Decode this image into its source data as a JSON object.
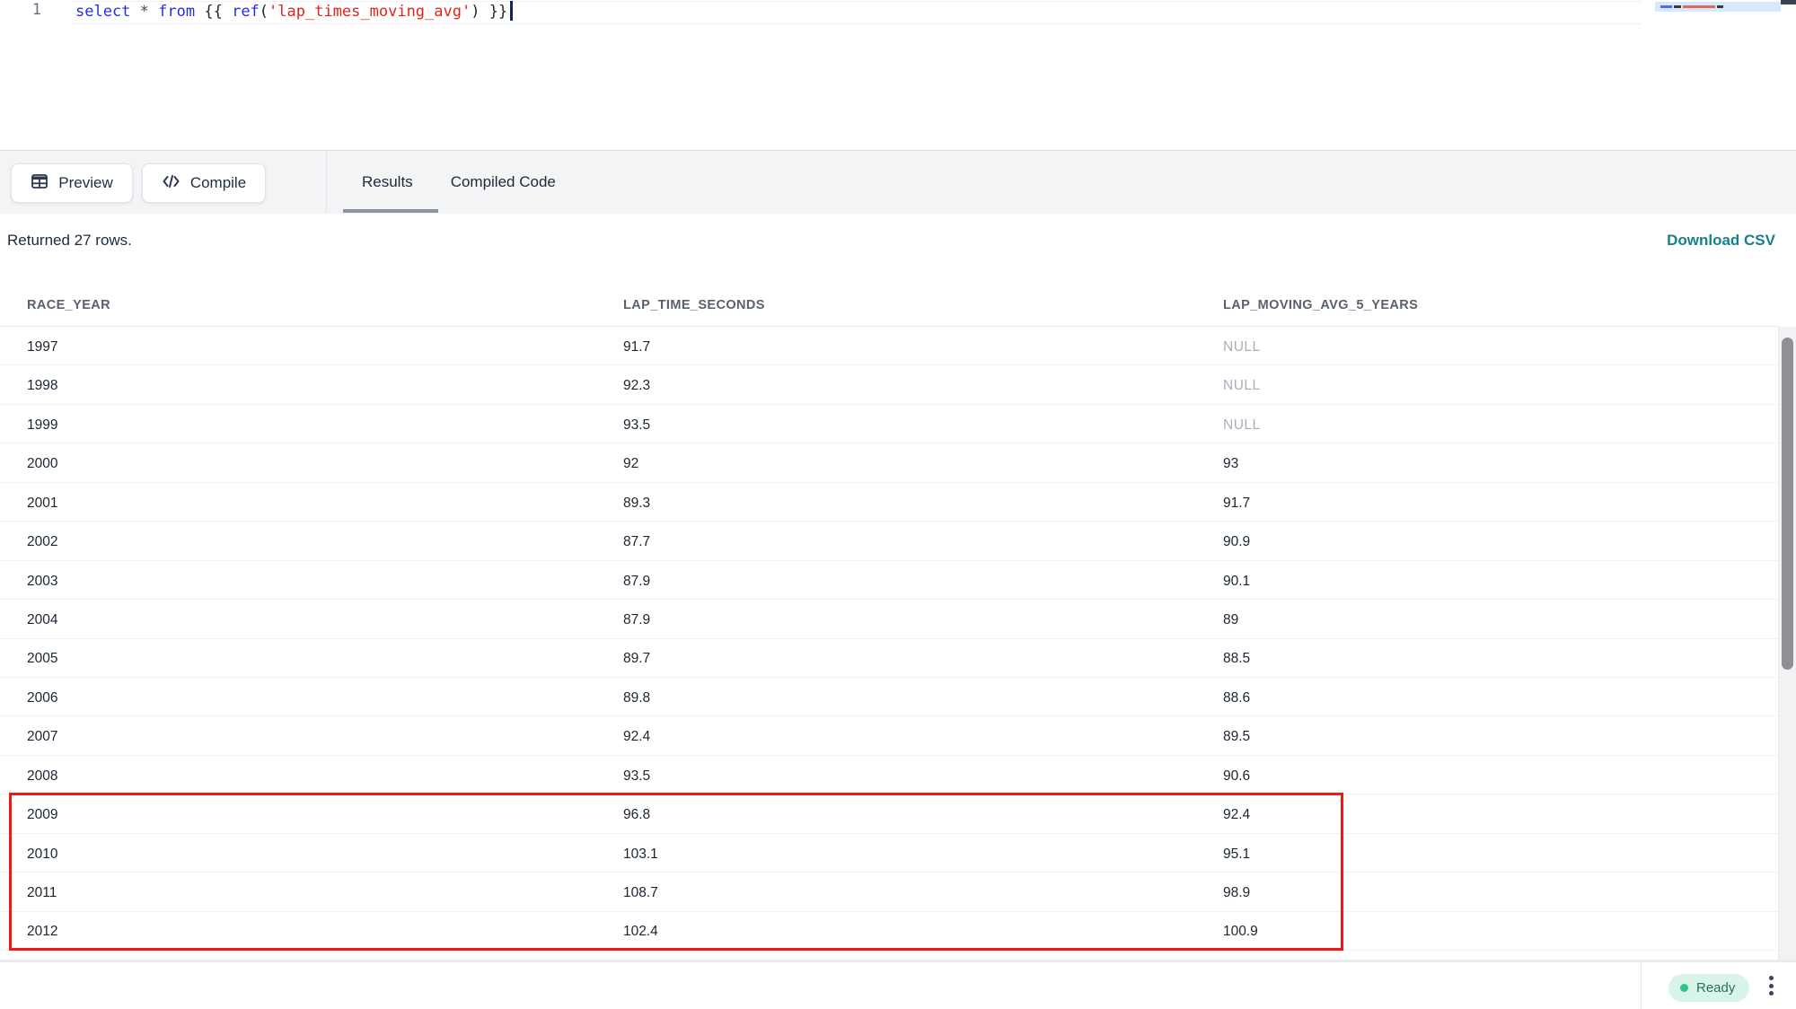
{
  "editor": {
    "line_number": "1",
    "tokens": [
      {
        "t": "select",
        "c": "kw"
      },
      {
        "t": " ",
        "c": "pl"
      },
      {
        "t": "*",
        "c": "op"
      },
      {
        "t": " ",
        "c": "pl"
      },
      {
        "t": "from",
        "c": "kw"
      },
      {
        "t": " {{ ",
        "c": "pl"
      },
      {
        "t": "ref",
        "c": "kw"
      },
      {
        "t": "(",
        "c": "pl"
      },
      {
        "t": "'lap_times_moving_avg'",
        "c": "str"
      },
      {
        "t": ")",
        "c": "pl"
      },
      {
        "t": " }}",
        "c": "pl"
      }
    ]
  },
  "toolbar": {
    "preview_label": "Preview",
    "compile_label": "Compile",
    "tabs": [
      {
        "label": "Results",
        "active": true
      },
      {
        "label": "Compiled Code",
        "active": false
      }
    ]
  },
  "results": {
    "summary": "Returned 27 rows.",
    "download_csv_label": "Download CSV",
    "table": {
      "columns": [
        "RACE_YEAR",
        "LAP_TIME_SECONDS",
        "LAP_MOVING_AVG_5_YEARS"
      ],
      "rows": [
        [
          "1997",
          "91.7",
          "NULL"
        ],
        [
          "1998",
          "92.3",
          "NULL"
        ],
        [
          "1999",
          "93.5",
          "NULL"
        ],
        [
          "2000",
          "92",
          "93"
        ],
        [
          "2001",
          "89.3",
          "91.7"
        ],
        [
          "2002",
          "87.7",
          "90.9"
        ],
        [
          "2003",
          "87.9",
          "90.1"
        ],
        [
          "2004",
          "87.9",
          "89"
        ],
        [
          "2005",
          "89.7",
          "88.5"
        ],
        [
          "2006",
          "89.8",
          "88.6"
        ],
        [
          "2007",
          "92.4",
          "89.5"
        ],
        [
          "2008",
          "93.5",
          "90.6"
        ],
        [
          "2009",
          "96.8",
          "92.4"
        ],
        [
          "2010",
          "103.1",
          "95.1"
        ],
        [
          "2011",
          "108.7",
          "98.9"
        ],
        [
          "2012",
          "102.4",
          "100.9"
        ]
      ],
      "null_display": "NULL",
      "highlighted_rows": [
        "2009",
        "2010",
        "2011",
        "2012"
      ]
    }
  },
  "footer": {
    "status_label": "Ready"
  },
  "colors": {
    "keyword_blue": "#2430e0",
    "string_red": "#e1251b",
    "accent_teal": "#17808c",
    "annotation_red": "#ee1a15",
    "status_green": "#33c08c",
    "toolbar_bg": "#f2f4f6"
  }
}
